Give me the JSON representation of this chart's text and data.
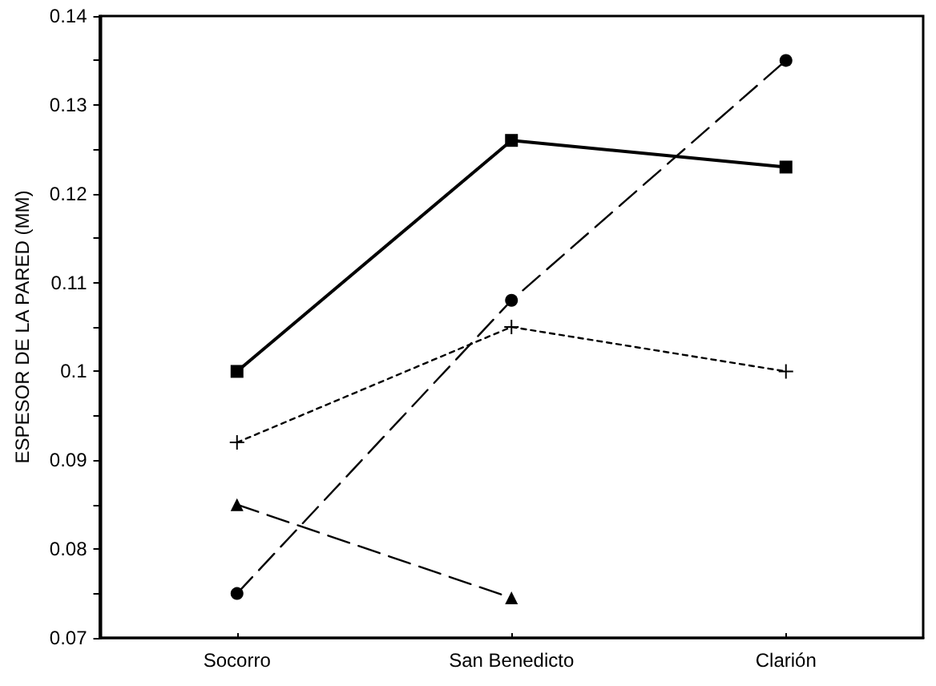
{
  "chart_data": {
    "type": "line",
    "ylabel": "ESPESOR DE LA PARED (MM)",
    "categories": [
      "Socorro",
      "San Benedicto",
      "Clarión"
    ],
    "series": [
      {
        "color": "#000000",
        "marker": "square",
        "line_style": "solid",
        "values": [
          0.1,
          0.126,
          0.123
        ]
      },
      {
        "color": "#000000",
        "marker": "circle",
        "line_style": "dashed",
        "values": [
          0.075,
          0.108,
          0.135
        ]
      },
      {
        "color": "#000000",
        "marker": "cross",
        "line_style": "dotted",
        "values": [
          0.092,
          0.105,
          0.1
        ]
      },
      {
        "color": "#000000",
        "marker": "triangle",
        "line_style": "dashed",
        "values": [
          0.085,
          0.0745,
          null
        ]
      }
    ],
    "ylim": [
      0.07,
      0.14
    ],
    "yticks": [
      0.07,
      0.08,
      0.09,
      0.1,
      0.11,
      0.12,
      0.13,
      0.14
    ],
    "grid": false
  }
}
